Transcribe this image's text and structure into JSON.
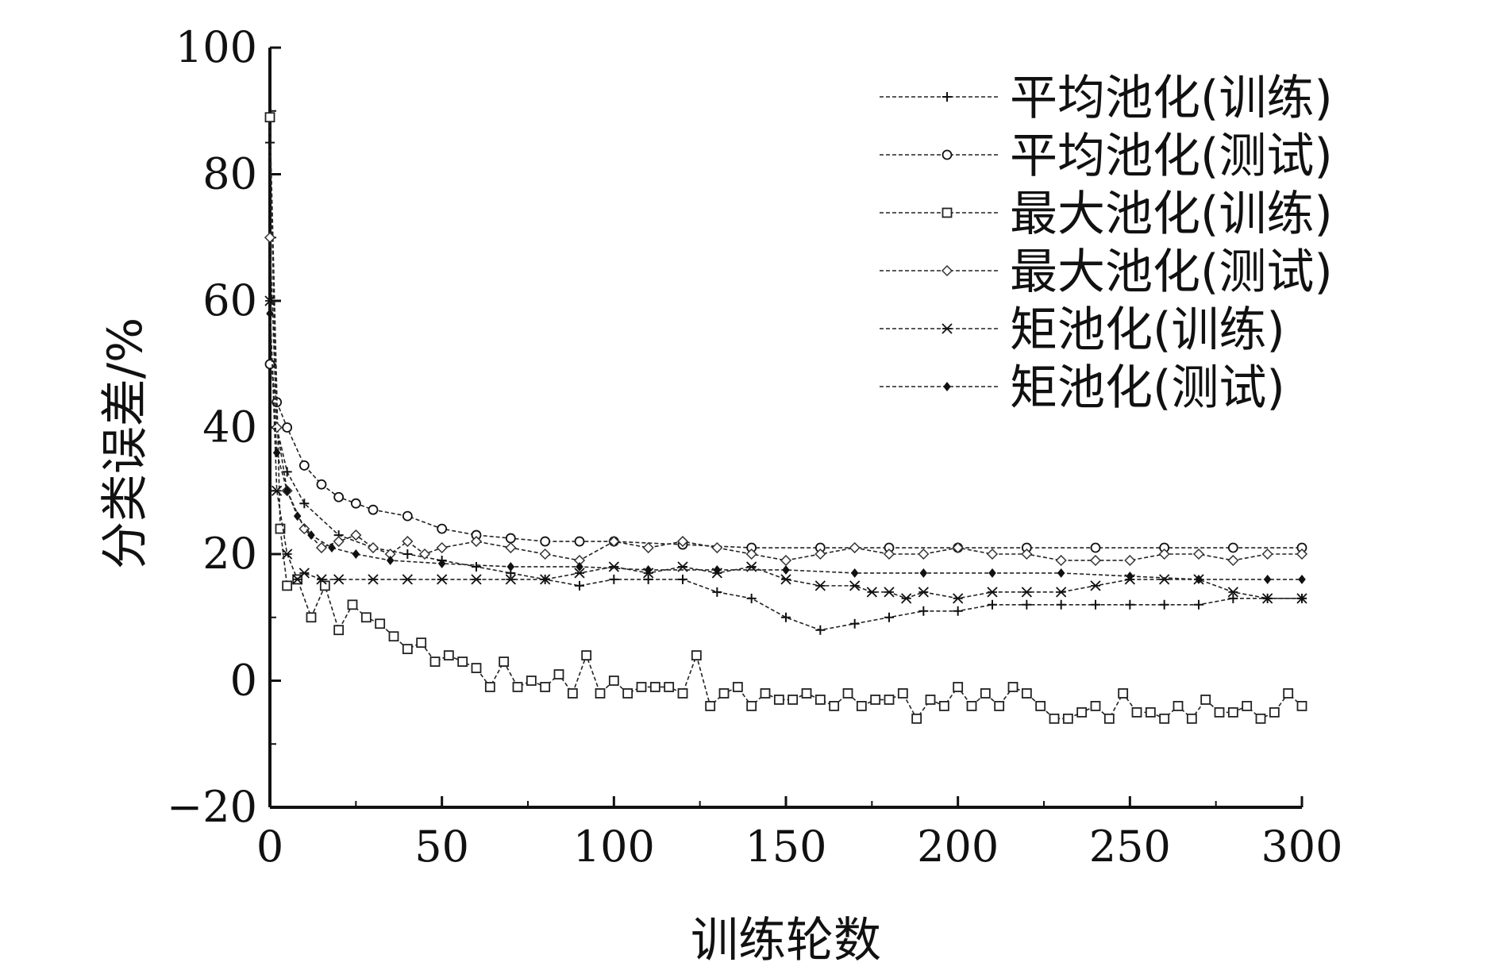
{
  "chart_data": {
    "type": "line",
    "title": "",
    "xlabel": "训练轮数",
    "ylabel": "分类误差/%",
    "xlim": [
      0,
      300
    ],
    "ylim": [
      -20,
      100
    ],
    "xticks": [
      "0",
      "50",
      "100",
      "150",
      "200",
      "250",
      "300"
    ],
    "yticks": [
      "−20",
      "0",
      "20",
      "40",
      "60",
      "80",
      "100"
    ],
    "legend_position": "top-right",
    "grid": false,
    "series": [
      {
        "name": "平均池化(训练)",
        "marker": "plus",
        "x": [
          0,
          2,
          5,
          10,
          20,
          30,
          40,
          50,
          60,
          70,
          80,
          90,
          100,
          110,
          120,
          130,
          140,
          150,
          160,
          170,
          180,
          190,
          200,
          210,
          220,
          230,
          240,
          250,
          260,
          270,
          280,
          290,
          300
        ],
        "values": [
          85,
          40,
          33,
          28,
          23,
          21,
          20,
          19,
          18,
          17,
          16,
          15,
          16,
          16,
          16,
          14,
          13,
          10,
          8,
          9,
          10,
          11,
          11,
          12,
          12,
          12,
          12,
          12,
          12,
          12,
          13,
          13,
          13
        ]
      },
      {
        "name": "平均池化(测试)",
        "marker": "circle",
        "x": [
          0,
          2,
          5,
          10,
          15,
          20,
          25,
          30,
          40,
          50,
          60,
          70,
          80,
          90,
          100,
          120,
          140,
          160,
          180,
          200,
          220,
          240,
          260,
          280,
          300
        ],
        "values": [
          50,
          44,
          40,
          34,
          31,
          29,
          28,
          27,
          26,
          24,
          23,
          22.5,
          22,
          22,
          22,
          21.5,
          21,
          21,
          21,
          21,
          21,
          21,
          21,
          21,
          21
        ]
      },
      {
        "name": "最大池化(训练)",
        "marker": "square",
        "x": [
          0,
          3,
          5,
          8,
          12,
          16,
          20,
          24,
          28,
          32,
          36,
          40,
          44,
          48,
          52,
          56,
          60,
          64,
          68,
          72,
          76,
          80,
          84,
          88,
          92,
          96,
          100,
          104,
          108,
          112,
          116,
          120,
          124,
          128,
          132,
          136,
          140,
          144,
          148,
          152,
          156,
          160,
          164,
          168,
          172,
          176,
          180,
          184,
          188,
          192,
          196,
          200,
          204,
          208,
          212,
          216,
          220,
          224,
          228,
          232,
          236,
          240,
          244,
          248,
          252,
          256,
          260,
          264,
          268,
          272,
          276,
          280,
          284,
          288,
          292,
          296,
          300
        ],
        "values": [
          89,
          24,
          15,
          16,
          10,
          15,
          8,
          12,
          10,
          9,
          7,
          5,
          6,
          3,
          4,
          3,
          2,
          -1,
          3,
          -1,
          0,
          -1,
          1,
          -2,
          4,
          -2,
          0,
          -2,
          -1,
          -1,
          -1,
          -2,
          4,
          -4,
          -2,
          -1,
          -4,
          -2,
          -3,
          -3,
          -2,
          -3,
          -4,
          -2,
          -4,
          -3,
          -3,
          -2,
          -6,
          -3,
          -4,
          -1,
          -4,
          -2,
          -4,
          -1,
          -2,
          -4,
          -6,
          -6,
          -5,
          -4,
          -6,
          -2,
          -5,
          -5,
          -6,
          -4,
          -6,
          -3,
          -5,
          -5,
          -4,
          -6,
          -5,
          -2,
          -4
        ]
      },
      {
        "name": "最大池化(测试)",
        "marker": "diamond",
        "x": [
          0,
          2,
          5,
          10,
          15,
          20,
          25,
          30,
          35,
          40,
          45,
          50,
          60,
          70,
          80,
          90,
          100,
          110,
          120,
          130,
          140,
          150,
          160,
          170,
          180,
          190,
          200,
          210,
          220,
          230,
          240,
          250,
          260,
          270,
          280,
          290,
          300
        ],
        "values": [
          70,
          40,
          30,
          24,
          21,
          22,
          23,
          21,
          20,
          22,
          20,
          21,
          22,
          21,
          20,
          19,
          22,
          21,
          22,
          21,
          20,
          19,
          20,
          21,
          20,
          20,
          21,
          20,
          20,
          19,
          19,
          19,
          20,
          20,
          19,
          20,
          20
        ]
      },
      {
        "name": "矩池化(训练)",
        "marker": "star",
        "x": [
          0,
          2,
          5,
          8,
          10,
          15,
          20,
          30,
          40,
          50,
          60,
          70,
          80,
          90,
          100,
          110,
          120,
          130,
          140,
          150,
          160,
          170,
          175,
          180,
          185,
          190,
          200,
          210,
          220,
          230,
          240,
          250,
          260,
          270,
          280,
          290,
          300
        ],
        "values": [
          60,
          30,
          20,
          16,
          17,
          16,
          16,
          16,
          16,
          16,
          16,
          16,
          16,
          17,
          18,
          17,
          18,
          17,
          18,
          16,
          15,
          15,
          14,
          14,
          13,
          14,
          13,
          14,
          14,
          14,
          15,
          16,
          16,
          16,
          14,
          13,
          13
        ]
      },
      {
        "name": "矩池化(测试)",
        "marker": "dot",
        "x": [
          0,
          2,
          5,
          8,
          12,
          18,
          25,
          35,
          50,
          70,
          90,
          110,
          130,
          150,
          170,
          190,
          210,
          230,
          250,
          270,
          290,
          300
        ],
        "values": [
          58,
          36,
          30,
          26,
          23,
          21,
          20,
          19,
          18.5,
          18,
          18,
          17.5,
          17.5,
          17.5,
          17,
          17,
          17,
          17,
          16.5,
          16,
          16,
          16
        ]
      }
    ]
  }
}
